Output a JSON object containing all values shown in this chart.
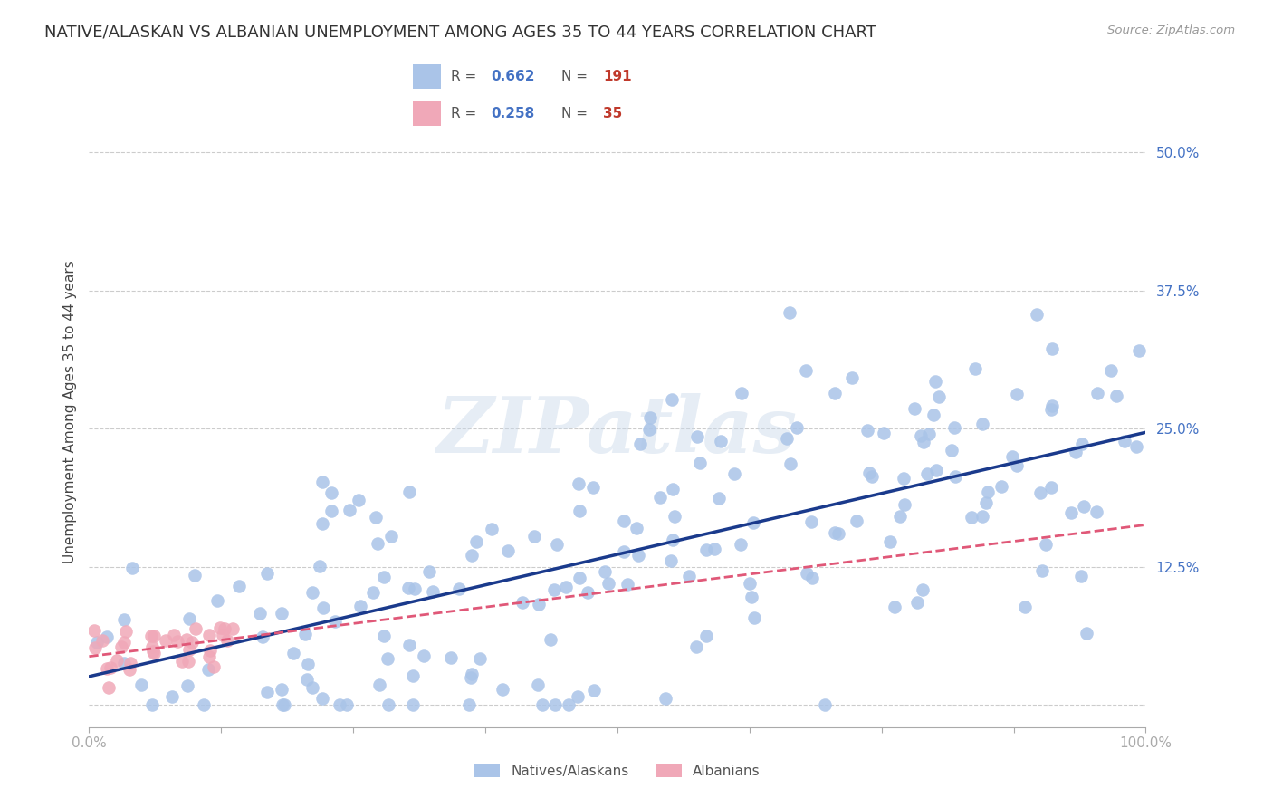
{
  "title": "NATIVE/ALASKAN VS ALBANIAN UNEMPLOYMENT AMONG AGES 35 TO 44 YEARS CORRELATION CHART",
  "source": "Source: ZipAtlas.com",
  "ylabel": "Unemployment Among Ages 35 to 44 years",
  "xlim": [
    0.0,
    1.0
  ],
  "ylim": [
    -0.02,
    0.55
  ],
  "xticks": [
    0.0,
    0.125,
    0.25,
    0.375,
    0.5,
    0.625,
    0.75,
    0.875,
    1.0
  ],
  "xticklabels": [
    "0.0%",
    "",
    "",
    "",
    "",
    "",
    "",
    "",
    "100.0%"
  ],
  "yticks": [
    0.0,
    0.125,
    0.25,
    0.375,
    0.5
  ],
  "yticklabels": [
    "",
    "12.5%",
    "25.0%",
    "37.5%",
    "50.0%"
  ],
  "native_color": "#aac4e8",
  "albanian_color": "#f0a8b8",
  "native_line_color": "#1a3a8c",
  "albanian_line_color": "#e05878",
  "native_R": 0.662,
  "native_N": 191,
  "albanian_R": 0.258,
  "albanian_N": 35,
  "watermark": "ZIPatlas",
  "background_color": "#ffffff",
  "grid_color": "#cccccc",
  "title_fontsize": 13,
  "label_fontsize": 11,
  "tick_fontsize": 11
}
